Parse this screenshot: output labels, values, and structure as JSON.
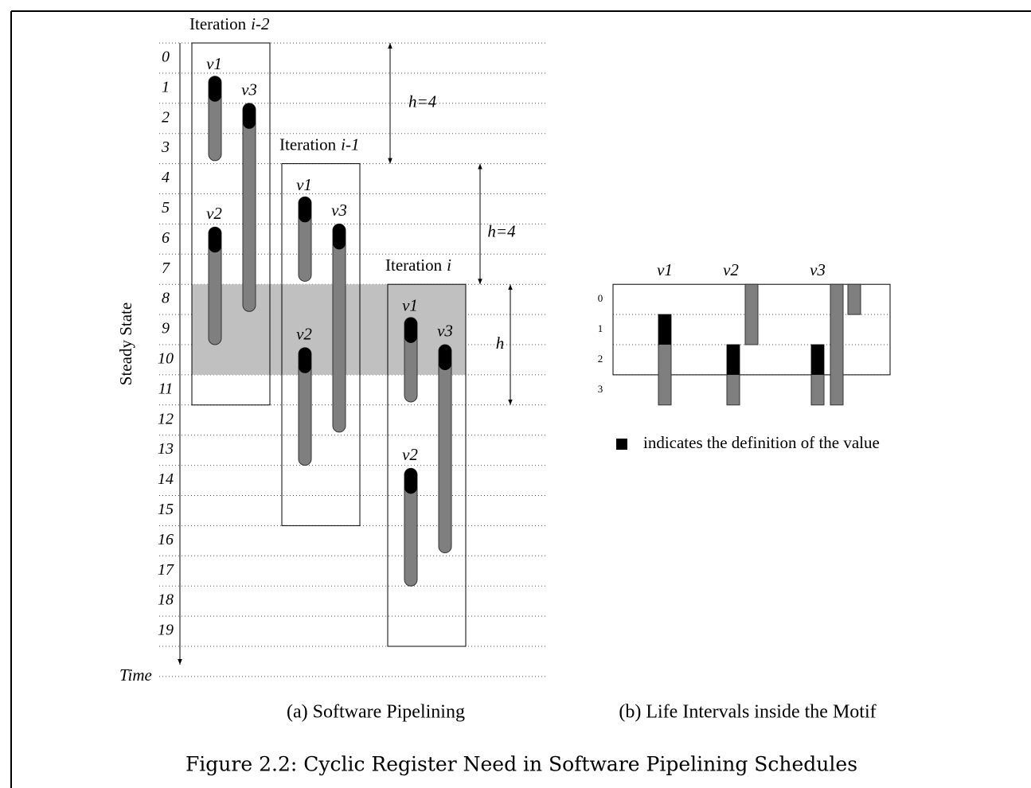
{
  "left": {
    "iterations": [
      {
        "label": "Iteration",
        "index": "i-2",
        "vars": [
          "v1",
          "v3",
          "v2"
        ]
      },
      {
        "label": "Iteration",
        "index": "i-1",
        "vars": [
          "v1",
          "v3",
          "v2"
        ]
      },
      {
        "label": "Iteration",
        "index": "i",
        "vars": [
          "v1",
          "v3",
          "v2"
        ]
      }
    ],
    "row_labels": [
      "0",
      "1",
      "2",
      "3",
      "4",
      "5",
      "6",
      "7",
      "8",
      "9",
      "10",
      "11",
      "12",
      "13",
      "14",
      "15",
      "16",
      "17",
      "18",
      "19"
    ],
    "heights": [
      "h=4",
      "h=4",
      "h"
    ],
    "axis_label": "Steady  State",
    "time_label": "Time",
    "caption": "(a) Software Pipelining"
  },
  "right": {
    "headers": [
      "v1",
      "v2",
      "v3"
    ],
    "row_labels": [
      "0",
      "1",
      "2",
      "3"
    ],
    "legend": "indicates the definition of the value",
    "caption": "(b) Life Intervals inside the Motif"
  },
  "figure_caption": "Figure 2.2: Cyclic Register Need in Software Pipelining Schedules"
}
